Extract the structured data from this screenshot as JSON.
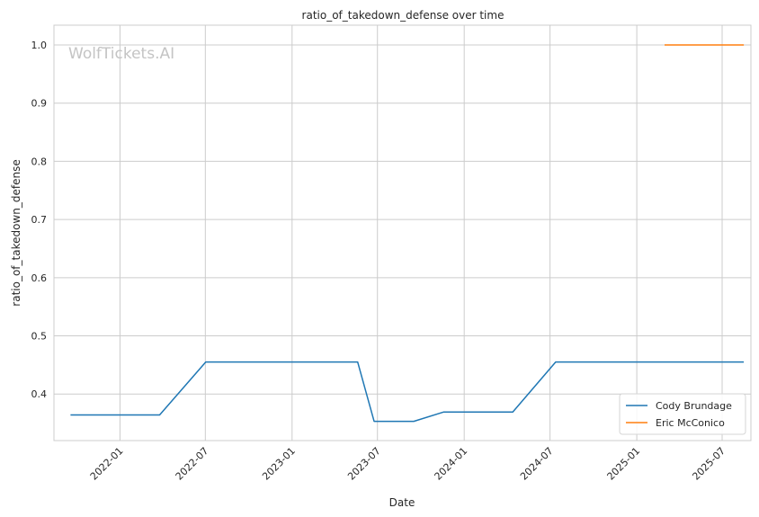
{
  "chart_data": {
    "type": "line",
    "title": "ratio_of_takedown_defense over time",
    "xlabel": "Date",
    "ylabel": "ratio_of_takedown_defense",
    "watermark": "WolfTickets.AI",
    "x_axis": {
      "kind": "date",
      "min": "2021-08-14",
      "max": "2025-08-31",
      "ticks": [
        "2022-01-01",
        "2022-07-01",
        "2023-01-01",
        "2023-07-01",
        "2024-01-01",
        "2024-07-01",
        "2025-01-01",
        "2025-07-01"
      ],
      "tick_labels": [
        "2022-01",
        "2022-07",
        "2023-01",
        "2023-07",
        "2024-01",
        "2024-07",
        "2025-01",
        "2025-07"
      ]
    },
    "y_axis": {
      "min": 0.32,
      "max": 1.034,
      "ticks": [
        0.4,
        0.5,
        0.6,
        0.7,
        0.8,
        0.9,
        1.0
      ],
      "tick_labels": [
        "0.4",
        "0.5",
        "0.6",
        "0.7",
        "0.8",
        "0.9",
        "1.0"
      ]
    },
    "grid": true,
    "legend_position": "bottom-right",
    "series": [
      {
        "name": "Cody Brundage",
        "color": "#1f77b4",
        "points": [
          {
            "x": "2021-09-18",
            "y": 0.364
          },
          {
            "x": "2022-03-26",
            "y": 0.364
          },
          {
            "x": "2022-07-02",
            "y": 0.455
          },
          {
            "x": "2023-05-20",
            "y": 0.455
          },
          {
            "x": "2023-06-24",
            "y": 0.353
          },
          {
            "x": "2023-09-16",
            "y": 0.353
          },
          {
            "x": "2023-11-18",
            "y": 0.369
          },
          {
            "x": "2024-04-13",
            "y": 0.369
          },
          {
            "x": "2024-07-13",
            "y": 0.455
          },
          {
            "x": "2025-08-16",
            "y": 0.455
          }
        ]
      },
      {
        "name": "Eric McConico",
        "color": "#ff7f0e",
        "points": [
          {
            "x": "2025-03-01",
            "y": 1.0
          },
          {
            "x": "2025-08-16",
            "y": 1.0
          }
        ]
      }
    ]
  }
}
